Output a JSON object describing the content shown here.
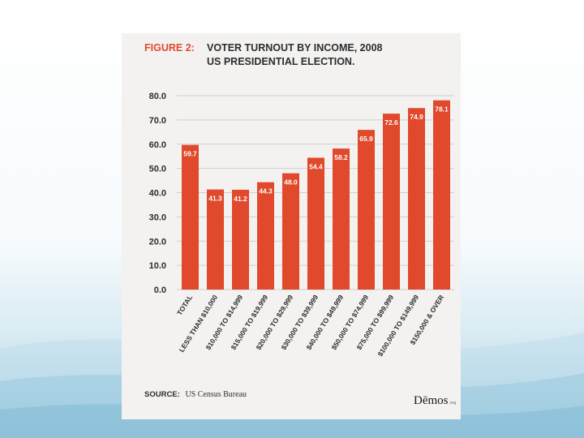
{
  "figure": {
    "label": "FIGURE 2:",
    "title": "VOTER TURNOUT BY INCOME, 2008 US PRESIDENTIAL ELECTION."
  },
  "source": {
    "label": "SOURCE:",
    "text": "US Census Bureau"
  },
  "logo": {
    "word": "Dēmos",
    "suffix": ".org"
  },
  "colors": {
    "bar": "#e0492b",
    "grid": "#cfcfcf",
    "label_text": "#ffffff",
    "axis_text": "#2d2d2d"
  },
  "chart_data": {
    "type": "bar",
    "title": "VOTER TURNOUT BY INCOME, 2008 US PRESIDENTIAL ELECTION.",
    "xlabel": "",
    "ylabel": "",
    "ylim": [
      0,
      80
    ],
    "yticks": [
      "0.0",
      "10.0",
      "20.0",
      "30.0",
      "40.0",
      "50.0",
      "60.0",
      "70.0",
      "80.0"
    ],
    "grid": true,
    "categories": [
      "TOTAL",
      "LESS THAN $10,000",
      "$10,000 TO $14,999",
      "$15,000 TO $19,999",
      "$20,000 TO $29,999",
      "$30,000 TO $39,999",
      "$40,000 TO $49,999",
      "$50,000 TO $74,999",
      "$75,000 TO $99,999",
      "$100,000 TO $149,999",
      "$150,000 & OVER"
    ],
    "values": [
      59.7,
      41.3,
      41.2,
      44.3,
      48.0,
      54.4,
      58.2,
      65.9,
      72.6,
      74.9,
      78.1
    ],
    "value_labels": [
      "59.7",
      "41.3",
      "41.2",
      "44.3",
      "48.0",
      "54.4",
      "58.2",
      "65.9",
      "72.6",
      "74.9",
      "78.1"
    ]
  }
}
